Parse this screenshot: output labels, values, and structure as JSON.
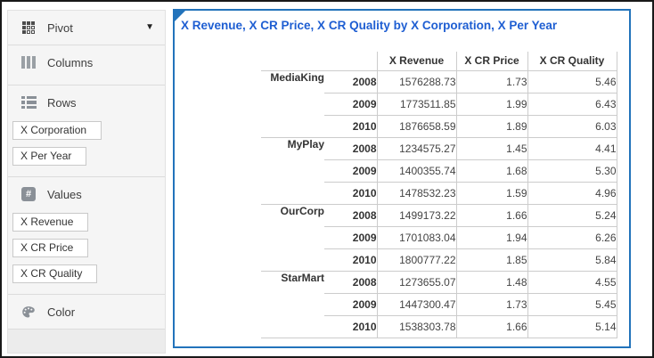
{
  "colors": {
    "panel_border": "#2273bb",
    "title_text": "#1e5ed2"
  },
  "sidebar": {
    "pivot": {
      "label": "Pivot"
    },
    "columns": {
      "label": "Columns",
      "chips": []
    },
    "rows": {
      "label": "Rows",
      "chips": [
        "X Corporation",
        "X Per Year"
      ]
    },
    "values": {
      "label": "Values",
      "chips": [
        "X Revenue",
        "X CR Price",
        "X CR Quality"
      ]
    },
    "color": {
      "label": "Color"
    }
  },
  "main": {
    "title": "X Revenue, X CR Price, X CR Quality by X Corporation, X Per Year",
    "table": {
      "columns": [
        "X Revenue",
        "X CR Price",
        "X CR Quality"
      ],
      "groups": [
        {
          "name": "MediaKing",
          "rows": [
            {
              "year": "2008",
              "values": [
                "1576288.73",
                "1.73",
                "5.46"
              ]
            },
            {
              "year": "2009",
              "values": [
                "1773511.85",
                "1.99",
                "6.43"
              ]
            },
            {
              "year": "2010",
              "values": [
                "1876658.59",
                "1.89",
                "6.03"
              ]
            }
          ]
        },
        {
          "name": "MyPlay",
          "rows": [
            {
              "year": "2008",
              "values": [
                "1234575.27",
                "1.45",
                "4.41"
              ]
            },
            {
              "year": "2009",
              "values": [
                "1400355.74",
                "1.68",
                "5.30"
              ]
            },
            {
              "year": "2010",
              "values": [
                "1478532.23",
                "1.59",
                "4.96"
              ]
            }
          ]
        },
        {
          "name": "OurCorp",
          "rows": [
            {
              "year": "2008",
              "values": [
                "1499173.22",
                "1.66",
                "5.24"
              ]
            },
            {
              "year": "2009",
              "values": [
                "1701083.04",
                "1.94",
                "6.26"
              ]
            },
            {
              "year": "2010",
              "values": [
                "1800777.22",
                "1.85",
                "5.84"
              ]
            }
          ]
        },
        {
          "name": "StarMart",
          "rows": [
            {
              "year": "2008",
              "values": [
                "1273655.07",
                "1.48",
                "4.55"
              ]
            },
            {
              "year": "2009",
              "values": [
                "1447300.47",
                "1.73",
                "5.45"
              ]
            },
            {
              "year": "2010",
              "values": [
                "1538303.78",
                "1.66",
                "5.14"
              ]
            }
          ]
        }
      ]
    }
  }
}
